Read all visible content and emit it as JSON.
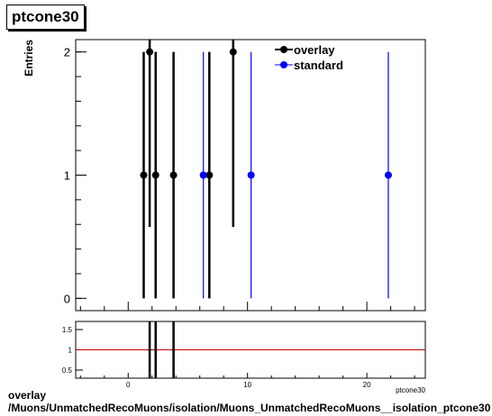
{
  "header": {
    "title": "ptcone30"
  },
  "footer": {
    "line1": "overlay",
    "line2": "/Muons/UnmatchedRecoMuons/isolation/Muons_UnmatchedRecoMuons__isolation_ptcone30"
  },
  "colors": {
    "overlay": "#000000",
    "standard": "#0000ff",
    "ratio_line": "#c00000"
  },
  "chart_data": [
    {
      "type": "scatter",
      "title": "",
      "xlabel": "",
      "ylabel": "Entries",
      "xlim": [
        -4.4,
        24.9
      ],
      "ylim": [
        -0.1,
        2.1
      ],
      "yticks": [
        0,
        1,
        2
      ],
      "grid": false,
      "legend_position": "top-right",
      "series": [
        {
          "name": "overlay",
          "color": "#000000",
          "points": [
            {
              "x": 1.3,
              "y": 1,
              "err": 1.0
            },
            {
              "x": 1.8,
              "y": 2,
              "err": 1.42
            },
            {
              "x": 2.3,
              "y": 1,
              "err": 1.0
            },
            {
              "x": 3.8,
              "y": 1,
              "err": 1.0
            },
            {
              "x": 6.8,
              "y": 1,
              "err": 1.0
            },
            {
              "x": 8.8,
              "y": 2,
              "err": 1.42
            }
          ]
        },
        {
          "name": "standard",
          "color": "#0000ff",
          "points": [
            {
              "x": 6.3,
              "y": 1,
              "err": 1.0
            },
            {
              "x": 10.3,
              "y": 1,
              "err": 1.0
            },
            {
              "x": 21.8,
              "y": 1,
              "err": 1.0
            }
          ]
        }
      ]
    },
    {
      "type": "line",
      "title": "",
      "xlabel": "ptcone30",
      "ylabel": "",
      "xlim": [
        -4.4,
        24.9
      ],
      "ylim": [
        0.3,
        1.7
      ],
      "xticks": [
        0,
        10,
        20
      ],
      "yticks": [
        0.5,
        1,
        1.5
      ],
      "reference_line": 1,
      "grid": false,
      "points": [
        {
          "x": 1.8,
          "y": 1,
          "err": 1.5
        },
        {
          "x": 2.3,
          "y": 1,
          "err": 1.5
        },
        {
          "x": 3.8,
          "y": 1,
          "err": 1.5
        }
      ]
    }
  ]
}
